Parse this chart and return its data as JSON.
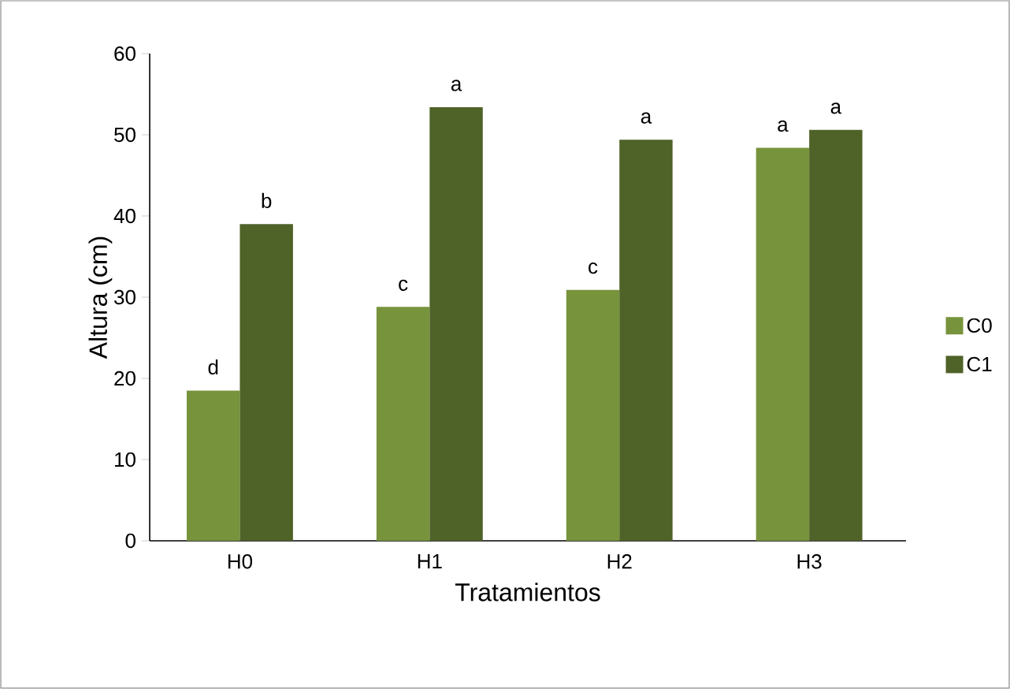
{
  "chart_data": {
    "type": "bar",
    "xlabel": "Tratamientos",
    "ylabel": "Altura (cm)",
    "categories": [
      "H0",
      "H1",
      "H2",
      "H3"
    ],
    "series": [
      {
        "name": "C0",
        "color": "#77933c",
        "values": [
          18.5,
          28.8,
          30.9,
          48.4
        ],
        "value_labels": [
          "d",
          "c",
          "c",
          "a"
        ]
      },
      {
        "name": "C1",
        "color": "#4f6228",
        "values": [
          39.0,
          53.4,
          49.4,
          50.6
        ],
        "value_labels": [
          "b",
          "a",
          "a",
          "a"
        ]
      }
    ],
    "ylim": [
      0,
      60
    ],
    "yticks": [
      0,
      10,
      20,
      30,
      40,
      50,
      60
    ],
    "grid": false,
    "legend": "right"
  }
}
